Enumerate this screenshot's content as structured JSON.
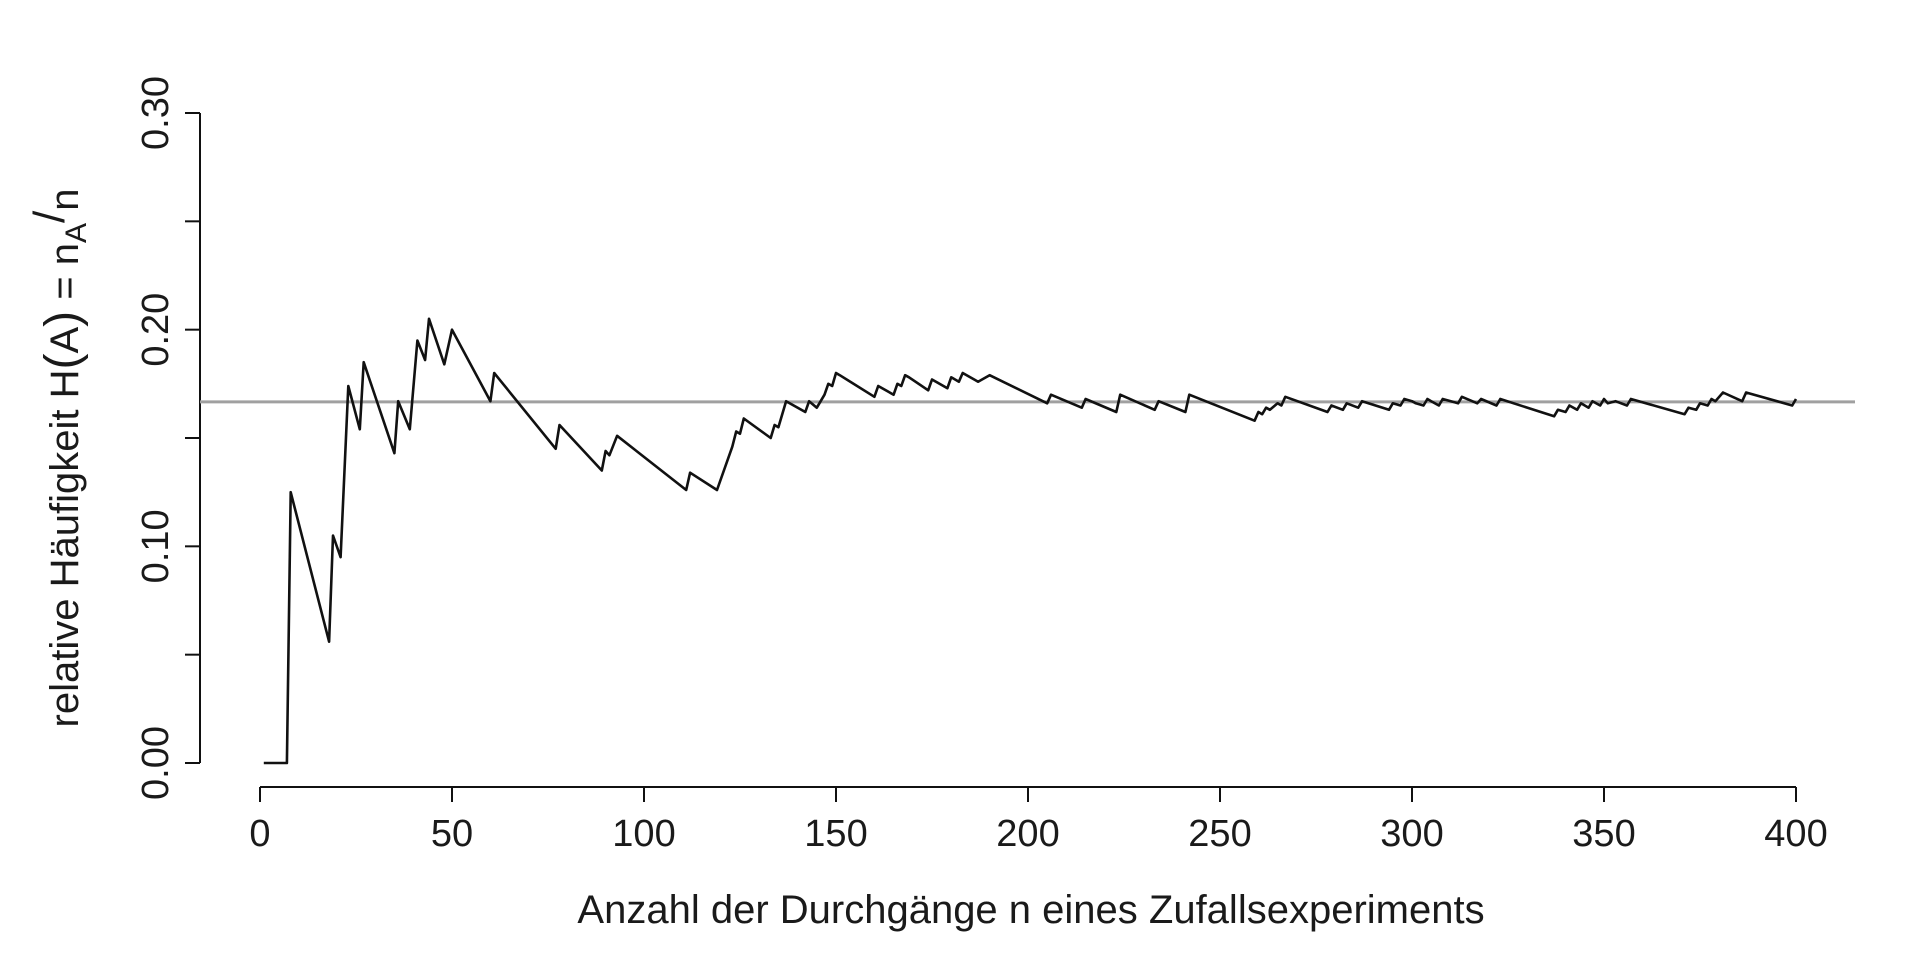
{
  "chart_data": {
    "type": "line",
    "title": "",
    "xlabel": "Anzahl der Durchgänge n eines Zufallsexperiments",
    "ylabel": {
      "prefix": "relative Häufigkeit  H",
      "paren_open": "(",
      "letter_A": "A",
      "paren_close": ")",
      "equals": " = n",
      "subscript": "A",
      "slash": "/",
      "n": "n"
    },
    "xlim": [
      0,
      400
    ],
    "ylim": [
      0,
      0.3
    ],
    "x_ticks": [
      0,
      50,
      100,
      150,
      200,
      250,
      300,
      350,
      400
    ],
    "x_tick_labels": [
      "0",
      "50",
      "100",
      "150",
      "200",
      "250",
      "300",
      "350",
      "400"
    ],
    "y_ticks": [
      0,
      0.05,
      0.1,
      0.15,
      0.2,
      0.25,
      0.3
    ],
    "y_tick_labels": [
      "0.00",
      "",
      "0.10",
      "",
      "0.20",
      "",
      "0.30"
    ],
    "grid": false,
    "reference_line": {
      "y": 0.1667,
      "color": "#a0a0a0"
    },
    "series": [
      {
        "color": "#111111",
        "x": [
          1,
          7,
          8,
          18,
          19,
          21,
          23,
          26,
          27,
          35,
          36,
          39,
          41,
          43,
          44,
          48,
          50,
          60,
          61,
          77,
          78,
          89,
          90,
          91,
          93,
          111,
          112,
          119,
          123,
          124,
          125,
          126,
          133,
          134,
          135,
          137,
          142,
          143,
          145,
          147,
          148,
          149,
          150,
          151,
          160,
          161,
          165,
          166,
          167,
          168,
          169,
          174,
          175,
          179,
          180,
          182,
          183,
          186,
          187,
          190,
          205,
          206,
          214,
          215,
          223,
          224,
          233,
          234,
          241,
          242,
          259,
          260,
          261,
          262,
          263,
          265,
          266,
          267,
          278,
          279,
          282,
          283,
          286,
          287,
          294,
          295,
          297,
          298,
          300,
          301,
          303,
          304,
          305,
          307,
          308,
          312,
          313,
          317,
          318,
          322,
          323,
          337,
          338,
          340,
          341,
          343,
          344,
          346,
          347,
          349,
          350,
          351,
          353,
          356,
          357,
          371,
          372,
          374,
          375,
          377,
          378,
          379,
          381,
          386,
          387,
          399,
          400
        ],
        "y": [
          0.0,
          0.0,
          0.125,
          0.056,
          0.105,
          0.095,
          0.174,
          0.154,
          0.185,
          0.143,
          0.167,
          0.154,
          0.195,
          0.186,
          0.205,
          0.184,
          0.2,
          0.167,
          0.18,
          0.145,
          0.156,
          0.135,
          0.144,
          0.142,
          0.151,
          0.126,
          0.134,
          0.126,
          0.146,
          0.153,
          0.152,
          0.159,
          0.15,
          0.156,
          0.155,
          0.167,
          0.162,
          0.167,
          0.164,
          0.17,
          0.175,
          0.174,
          0.18,
          0.179,
          0.169,
          0.174,
          0.17,
          0.175,
          0.174,
          0.179,
          0.178,
          0.172,
          0.177,
          0.173,
          0.178,
          0.176,
          0.18,
          0.177,
          0.176,
          0.179,
          0.166,
          0.17,
          0.164,
          0.168,
          0.162,
          0.17,
          0.163,
          0.167,
          0.162,
          0.17,
          0.158,
          0.162,
          0.161,
          0.164,
          0.163,
          0.166,
          0.165,
          0.169,
          0.162,
          0.165,
          0.163,
          0.166,
          0.164,
          0.167,
          0.163,
          0.166,
          0.165,
          0.168,
          0.167,
          0.166,
          0.165,
          0.168,
          0.167,
          0.165,
          0.168,
          0.166,
          0.169,
          0.166,
          0.168,
          0.165,
          0.168,
          0.16,
          0.163,
          0.162,
          0.165,
          0.163,
          0.166,
          0.164,
          0.167,
          0.165,
          0.168,
          0.166,
          0.167,
          0.165,
          0.168,
          0.161,
          0.164,
          0.163,
          0.166,
          0.165,
          0.168,
          0.167,
          0.171,
          0.167,
          0.171,
          0.165,
          0.168
        ]
      }
    ]
  }
}
